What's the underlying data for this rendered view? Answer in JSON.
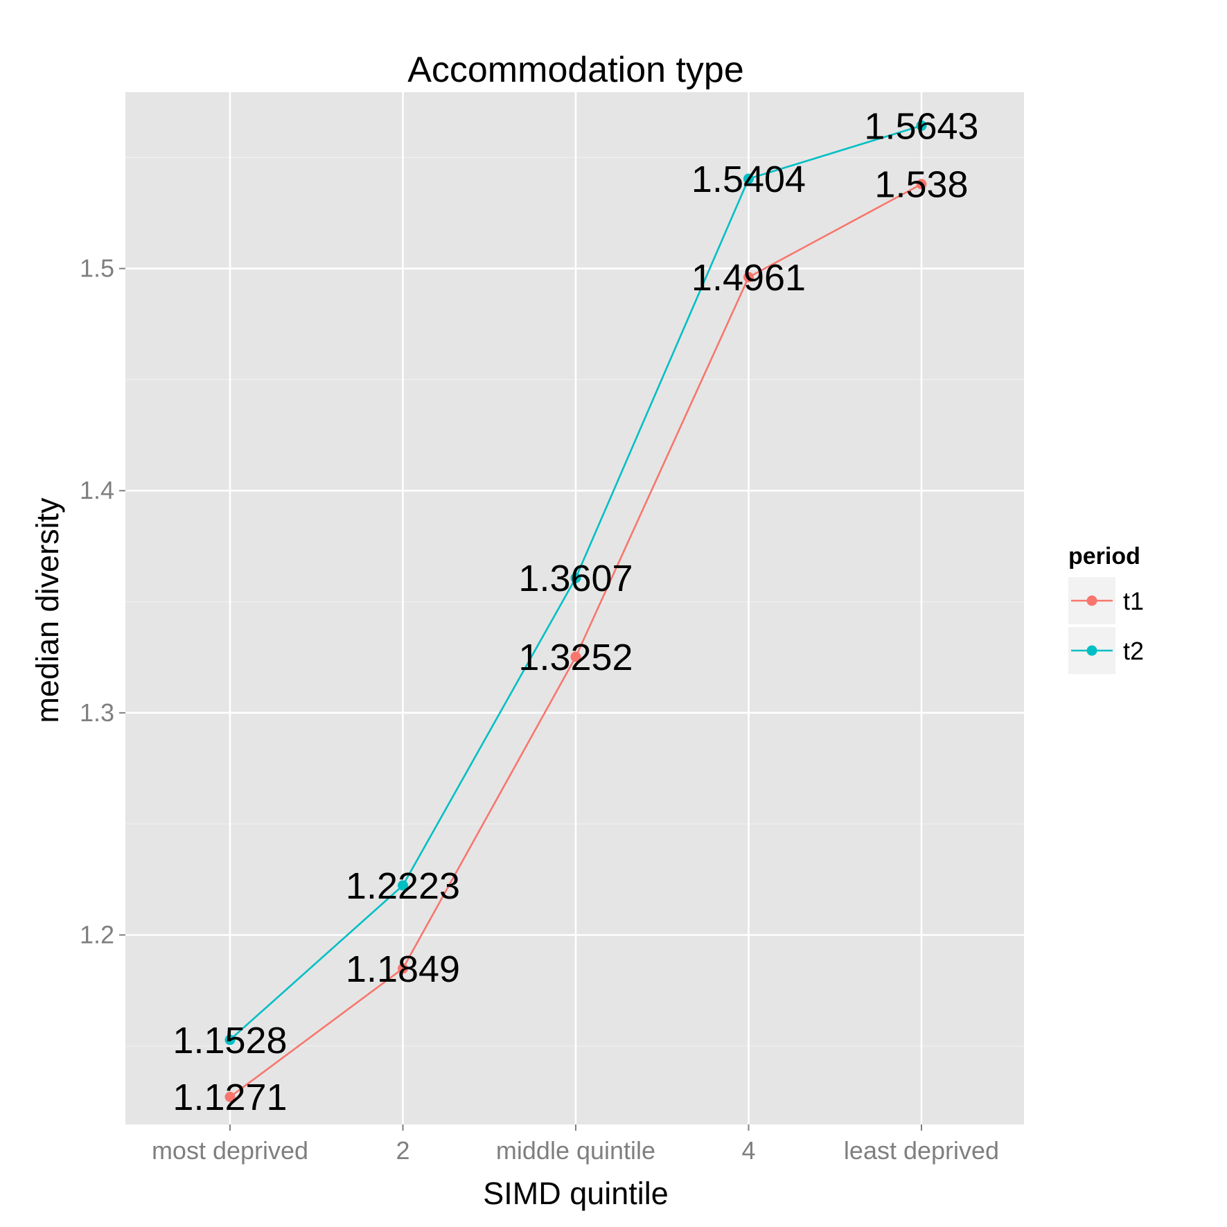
{
  "chart_data": {
    "type": "line",
    "title": "Accommodation type",
    "xlabel": "SIMD quintile",
    "ylabel": "median diversity",
    "categories": [
      "most deprived",
      "2",
      "middle quintile",
      "4",
      "least deprived"
    ],
    "y_ticks": [
      "1.2",
      "1.3",
      "1.4",
      "1.5"
    ],
    "ylim": [
      1.1147,
      1.5794
    ],
    "grid": true,
    "legend_position": "right",
    "legend_title": "period",
    "series": [
      {
        "name": "t1",
        "color": "#F8766D",
        "values": [
          1.1271,
          1.1849,
          1.3252,
          1.4961,
          1.538
        ],
        "labels": [
          "1.1271",
          "1.1849",
          "1.3252",
          "1.4961",
          "1.538"
        ]
      },
      {
        "name": "t2",
        "color": "#00BFC4",
        "values": [
          1.1528,
          1.2223,
          1.3607,
          1.5404,
          1.5643
        ],
        "labels": [
          "1.1528",
          "1.2223",
          "1.3607",
          "1.5404",
          "1.5643"
        ]
      }
    ]
  }
}
